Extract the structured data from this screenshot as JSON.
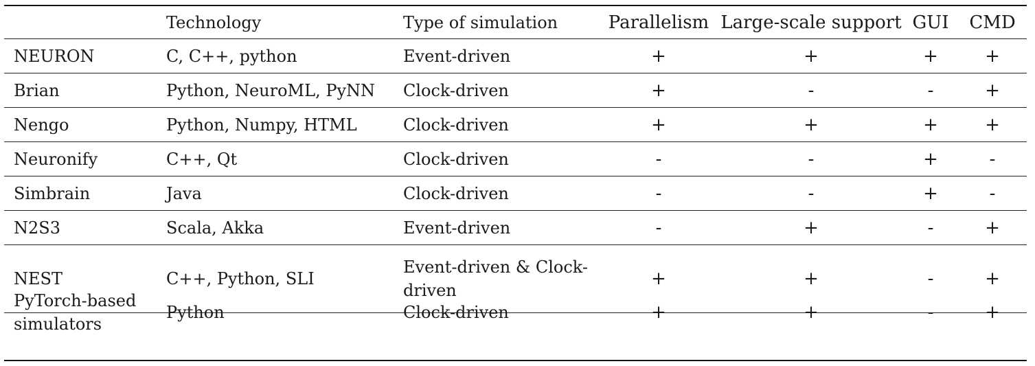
{
  "headers": [
    "",
    "Technology",
    "Type of simulation",
    "Parallelism",
    "Large-scale support",
    "GUI",
    "CMD"
  ],
  "rows": [
    [
      "NEURON",
      "C, C++, python",
      "Event-driven",
      "+",
      "+",
      "+",
      "+"
    ],
    [
      "Brian",
      "Python, NeuroML, PyNN",
      "Clock-driven",
      "+",
      "-",
      "-",
      "+"
    ],
    [
      "Nengo",
      "Python, Numpy, HTML",
      "Clock-driven",
      "+",
      "+",
      "+",
      "+"
    ],
    [
      "Neuronify",
      "C++, Qt",
      "Clock-driven",
      "-",
      "-",
      "+",
      "-"
    ],
    [
      "Simbrain",
      "Java",
      "Clock-driven",
      "-",
      "-",
      "+",
      "-"
    ],
    [
      "N2S3",
      "Scala, Akka",
      "Event-driven",
      "-",
      "+",
      "-",
      "+"
    ],
    [
      "NEST",
      "C++, Python, SLI",
      "Event-driven & Clock-driven",
      "+",
      "+",
      "-",
      "+"
    ],
    [
      "PyTorch-based simulators",
      "Python",
      "Clock-driven",
      "+",
      "+",
      "-",
      "+"
    ]
  ]
}
